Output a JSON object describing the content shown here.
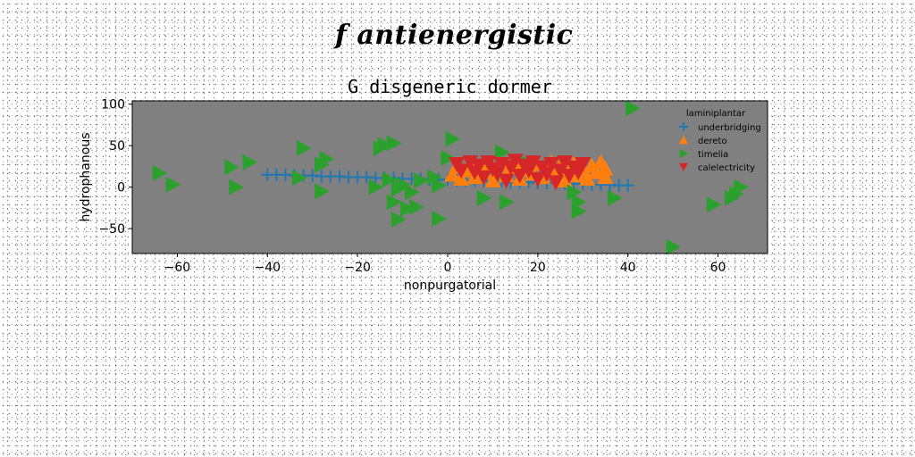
{
  "suptitle": "f antienergistic",
  "chart_data": {
    "type": "scatter",
    "title": "G disgeneric dormer",
    "xlabel": "nonpurgatorial",
    "ylabel": "hydrophanous",
    "xlim": [
      -70,
      71
    ],
    "ylim": [
      -80,
      104
    ],
    "xticks": [
      -60,
      -40,
      -20,
      0,
      20,
      40,
      60
    ],
    "yticks": [
      -50,
      0,
      50,
      100
    ],
    "grid": false,
    "background": "#808080",
    "legend": {
      "title": "laminiplantar",
      "placement": "top-right",
      "entries": [
        "underbridging",
        "dereto",
        "timelia",
        "calelectricity"
      ]
    },
    "series": [
      {
        "name": "underbridging",
        "marker": "plus",
        "color": "#1f77b4",
        "points": [
          [
            -40,
            15
          ],
          [
            -38,
            15
          ],
          [
            -36,
            15
          ],
          [
            -34,
            14
          ],
          [
            -32,
            14
          ],
          [
            -30,
            14
          ],
          [
            -28,
            13
          ],
          [
            -26,
            13
          ],
          [
            -24,
            13
          ],
          [
            -22,
            12
          ],
          [
            -20,
            12
          ],
          [
            -18,
            12
          ],
          [
            -16,
            11
          ],
          [
            -14,
            11
          ],
          [
            -12,
            11
          ],
          [
            -10,
            10
          ],
          [
            -8,
            10
          ],
          [
            -6,
            10
          ],
          [
            -4,
            9
          ],
          [
            -2,
            9
          ],
          [
            0,
            9
          ],
          [
            2,
            8
          ],
          [
            4,
            8
          ],
          [
            6,
            8
          ],
          [
            8,
            7
          ],
          [
            10,
            7
          ],
          [
            12,
            7
          ],
          [
            14,
            6
          ],
          [
            16,
            6
          ],
          [
            18,
            6
          ],
          [
            20,
            5
          ],
          [
            22,
            5
          ],
          [
            24,
            5
          ],
          [
            26,
            4
          ],
          [
            28,
            4
          ],
          [
            30,
            4
          ],
          [
            32,
            3
          ],
          [
            34,
            3
          ],
          [
            36,
            3
          ],
          [
            38,
            2
          ],
          [
            40,
            2
          ]
        ]
      },
      {
        "name": "dereto",
        "marker": "triangle-up",
        "color": "#ff7f0e",
        "points": [
          [
            1,
            15
          ],
          [
            2,
            25
          ],
          [
            3,
            10
          ],
          [
            4,
            20
          ],
          [
            5,
            28
          ],
          [
            6,
            12
          ],
          [
            7,
            22
          ],
          [
            8,
            18
          ],
          [
            9,
            26
          ],
          [
            10,
            8
          ],
          [
            11,
            20
          ],
          [
            12,
            28
          ],
          [
            13,
            14
          ],
          [
            14,
            24
          ],
          [
            15,
            30
          ],
          [
            16,
            10
          ],
          [
            17,
            20
          ],
          [
            18,
            26
          ],
          [
            19,
            16
          ],
          [
            20,
            28
          ],
          [
            21,
            12
          ],
          [
            22,
            22
          ],
          [
            23,
            30
          ],
          [
            24,
            18
          ],
          [
            25,
            26
          ],
          [
            26,
            8
          ],
          [
            27,
            20
          ],
          [
            28,
            28
          ],
          [
            29,
            14
          ],
          [
            30,
            22
          ],
          [
            31,
            10
          ],
          [
            32,
            26
          ],
          [
            33,
            18
          ],
          [
            34,
            30
          ],
          [
            35,
            12
          ],
          [
            35,
            22
          ]
        ]
      },
      {
        "name": "timelia",
        "marker": "triangle-right",
        "color": "#2ca02c",
        "points": [
          [
            -64,
            17
          ],
          [
            -61,
            3
          ],
          [
            -48,
            24
          ],
          [
            -47,
            0
          ],
          [
            -44,
            30
          ],
          [
            -32,
            47
          ],
          [
            -33,
            11
          ],
          [
            -27,
            34
          ],
          [
            -28,
            27
          ],
          [
            -28,
            -5
          ],
          [
            -15,
            47
          ],
          [
            -14,
            51
          ],
          [
            -12,
            53
          ],
          [
            -16,
            0
          ],
          [
            -13,
            9
          ],
          [
            -12,
            -18
          ],
          [
            -11,
            -2
          ],
          [
            -10,
            3
          ],
          [
            -11,
            -39
          ],
          [
            -9,
            -26
          ],
          [
            -8,
            -6
          ],
          [
            -7,
            -24
          ],
          [
            -6,
            8
          ],
          [
            -3,
            12
          ],
          [
            -2,
            2
          ],
          [
            -2,
            -38
          ],
          [
            0,
            35
          ],
          [
            1,
            58
          ],
          [
            8,
            -13
          ],
          [
            12,
            42
          ],
          [
            13,
            -18
          ],
          [
            18,
            28
          ],
          [
            28,
            -6
          ],
          [
            29,
            -18
          ],
          [
            29,
            -29
          ],
          [
            37,
            -13
          ],
          [
            41,
            95
          ],
          [
            50,
            -72
          ],
          [
            59,
            -21
          ],
          [
            63,
            -13
          ],
          [
            64,
            -8
          ],
          [
            65,
            0
          ]
        ]
      },
      {
        "name": "calelectricity",
        "marker": "triangle-down",
        "color": "#d62728",
        "points": [
          [
            2,
            28
          ],
          [
            3,
            20
          ],
          [
            5,
            30
          ],
          [
            6,
            18
          ],
          [
            7,
            26
          ],
          [
            8,
            12
          ],
          [
            9,
            30
          ],
          [
            10,
            22
          ],
          [
            11,
            16
          ],
          [
            12,
            28
          ],
          [
            13,
            8
          ],
          [
            14,
            24
          ],
          [
            15,
            32
          ],
          [
            16,
            14
          ],
          [
            17,
            26
          ],
          [
            18,
            20
          ],
          [
            19,
            30
          ],
          [
            20,
            10
          ],
          [
            21,
            24
          ],
          [
            22,
            16
          ],
          [
            23,
            28
          ],
          [
            24,
            6
          ],
          [
            25,
            20
          ],
          [
            26,
            30
          ],
          [
            27,
            14
          ],
          [
            28,
            24
          ],
          [
            29,
            18
          ],
          [
            30,
            28
          ]
        ]
      }
    ]
  }
}
